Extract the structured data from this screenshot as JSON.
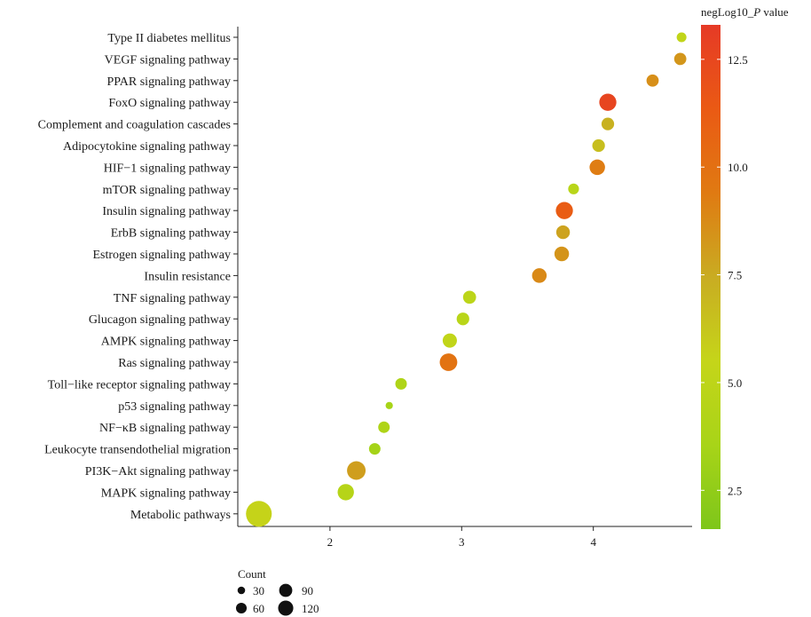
{
  "chart_data": {
    "type": "scatter",
    "title": "",
    "xlabel": "",
    "ylabel": "",
    "xlim": [
      1.3,
      4.75
    ],
    "xticks": [
      "2",
      "3",
      "4"
    ],
    "categories": [
      "Type II diabetes mellitus",
      "VEGF signaling pathway",
      "PPAR signaling pathway",
      "FoxO signaling pathway",
      "Complement and coagulation cascades",
      "Adipocytokine signaling pathway",
      "HIF−1 signaling pathway",
      "mTOR signaling pathway",
      "Insulin signaling pathway",
      "ErbB signaling pathway",
      "Estrogen signaling pathway",
      "Insulin resistance",
      "TNF signaling pathway",
      "Glucagon signaling pathway",
      "AMPK signaling pathway",
      "Ras signaling pathway",
      "Toll−like receptor signaling pathway",
      "p53 signaling pathway",
      "NF−κB signaling pathway",
      "Leukocyte transendothelial migration",
      "PI3K−Akt signaling pathway",
      "MAPK signaling pathway",
      "Metabolic pathways"
    ],
    "points": [
      {
        "x": 4.67,
        "count": 18,
        "neglog10p": 5.2
      },
      {
        "x": 4.66,
        "count": 28,
        "neglog10p": 8.3
      },
      {
        "x": 4.45,
        "count": 28,
        "neglog10p": 8.6
      },
      {
        "x": 4.11,
        "count": 55,
        "neglog10p": 12.6
      },
      {
        "x": 4.11,
        "count": 30,
        "neglog10p": 7.2
      },
      {
        "x": 4.04,
        "count": 30,
        "neglog10p": 6.6
      },
      {
        "x": 4.03,
        "count": 45,
        "neglog10p": 9.3
      },
      {
        "x": 3.85,
        "count": 22,
        "neglog10p": 4.6
      },
      {
        "x": 3.78,
        "count": 55,
        "neglog10p": 11.2
      },
      {
        "x": 3.77,
        "count": 35,
        "neglog10p": 7.8
      },
      {
        "x": 3.76,
        "count": 40,
        "neglog10p": 8.4
      },
      {
        "x": 3.59,
        "count": 40,
        "neglog10p": 8.8
      },
      {
        "x": 3.06,
        "count": 32,
        "neglog10p": 4.9
      },
      {
        "x": 3.01,
        "count": 30,
        "neglog10p": 4.7
      },
      {
        "x": 2.91,
        "count": 38,
        "neglog10p": 5.2
      },
      {
        "x": 2.9,
        "count": 58,
        "neglog10p": 9.8
      },
      {
        "x": 2.54,
        "count": 25,
        "neglog10p": 4.0
      },
      {
        "x": 2.45,
        "count": 10,
        "neglog10p": 3.5
      },
      {
        "x": 2.41,
        "count": 25,
        "neglog10p": 4.0
      },
      {
        "x": 2.34,
        "count": 25,
        "neglog10p": 3.4
      },
      {
        "x": 2.2,
        "count": 65,
        "neglog10p": 8.0
      },
      {
        "x": 2.12,
        "count": 50,
        "neglog10p": 4.5
      },
      {
        "x": 1.46,
        "count": 125,
        "neglog10p": 5.6
      }
    ],
    "colorbar": {
      "title_prefix": "negLog10_",
      "title_italic": "P",
      "title_suffix": " value",
      "range": [
        1.6,
        13.3
      ],
      "ticks": [
        2.5,
        5.0,
        7.5,
        10.0,
        12.5
      ],
      "tick_labels": [
        "2.5",
        "5.0",
        "7.5",
        "10.0",
        "12.5"
      ],
      "colors": [
        "#7ec61a",
        "#a8d418",
        "#c5d519",
        "#c9ac22",
        "#e07a12",
        "#ea5a14",
        "#e63a26"
      ]
    },
    "size_legend": {
      "title": "Count",
      "entries": [
        {
          "label": "30",
          "count": 30
        },
        {
          "label": "60",
          "count": 60
        },
        {
          "label": "90",
          "count": 90
        },
        {
          "label": "120",
          "count": 120
        }
      ]
    }
  }
}
